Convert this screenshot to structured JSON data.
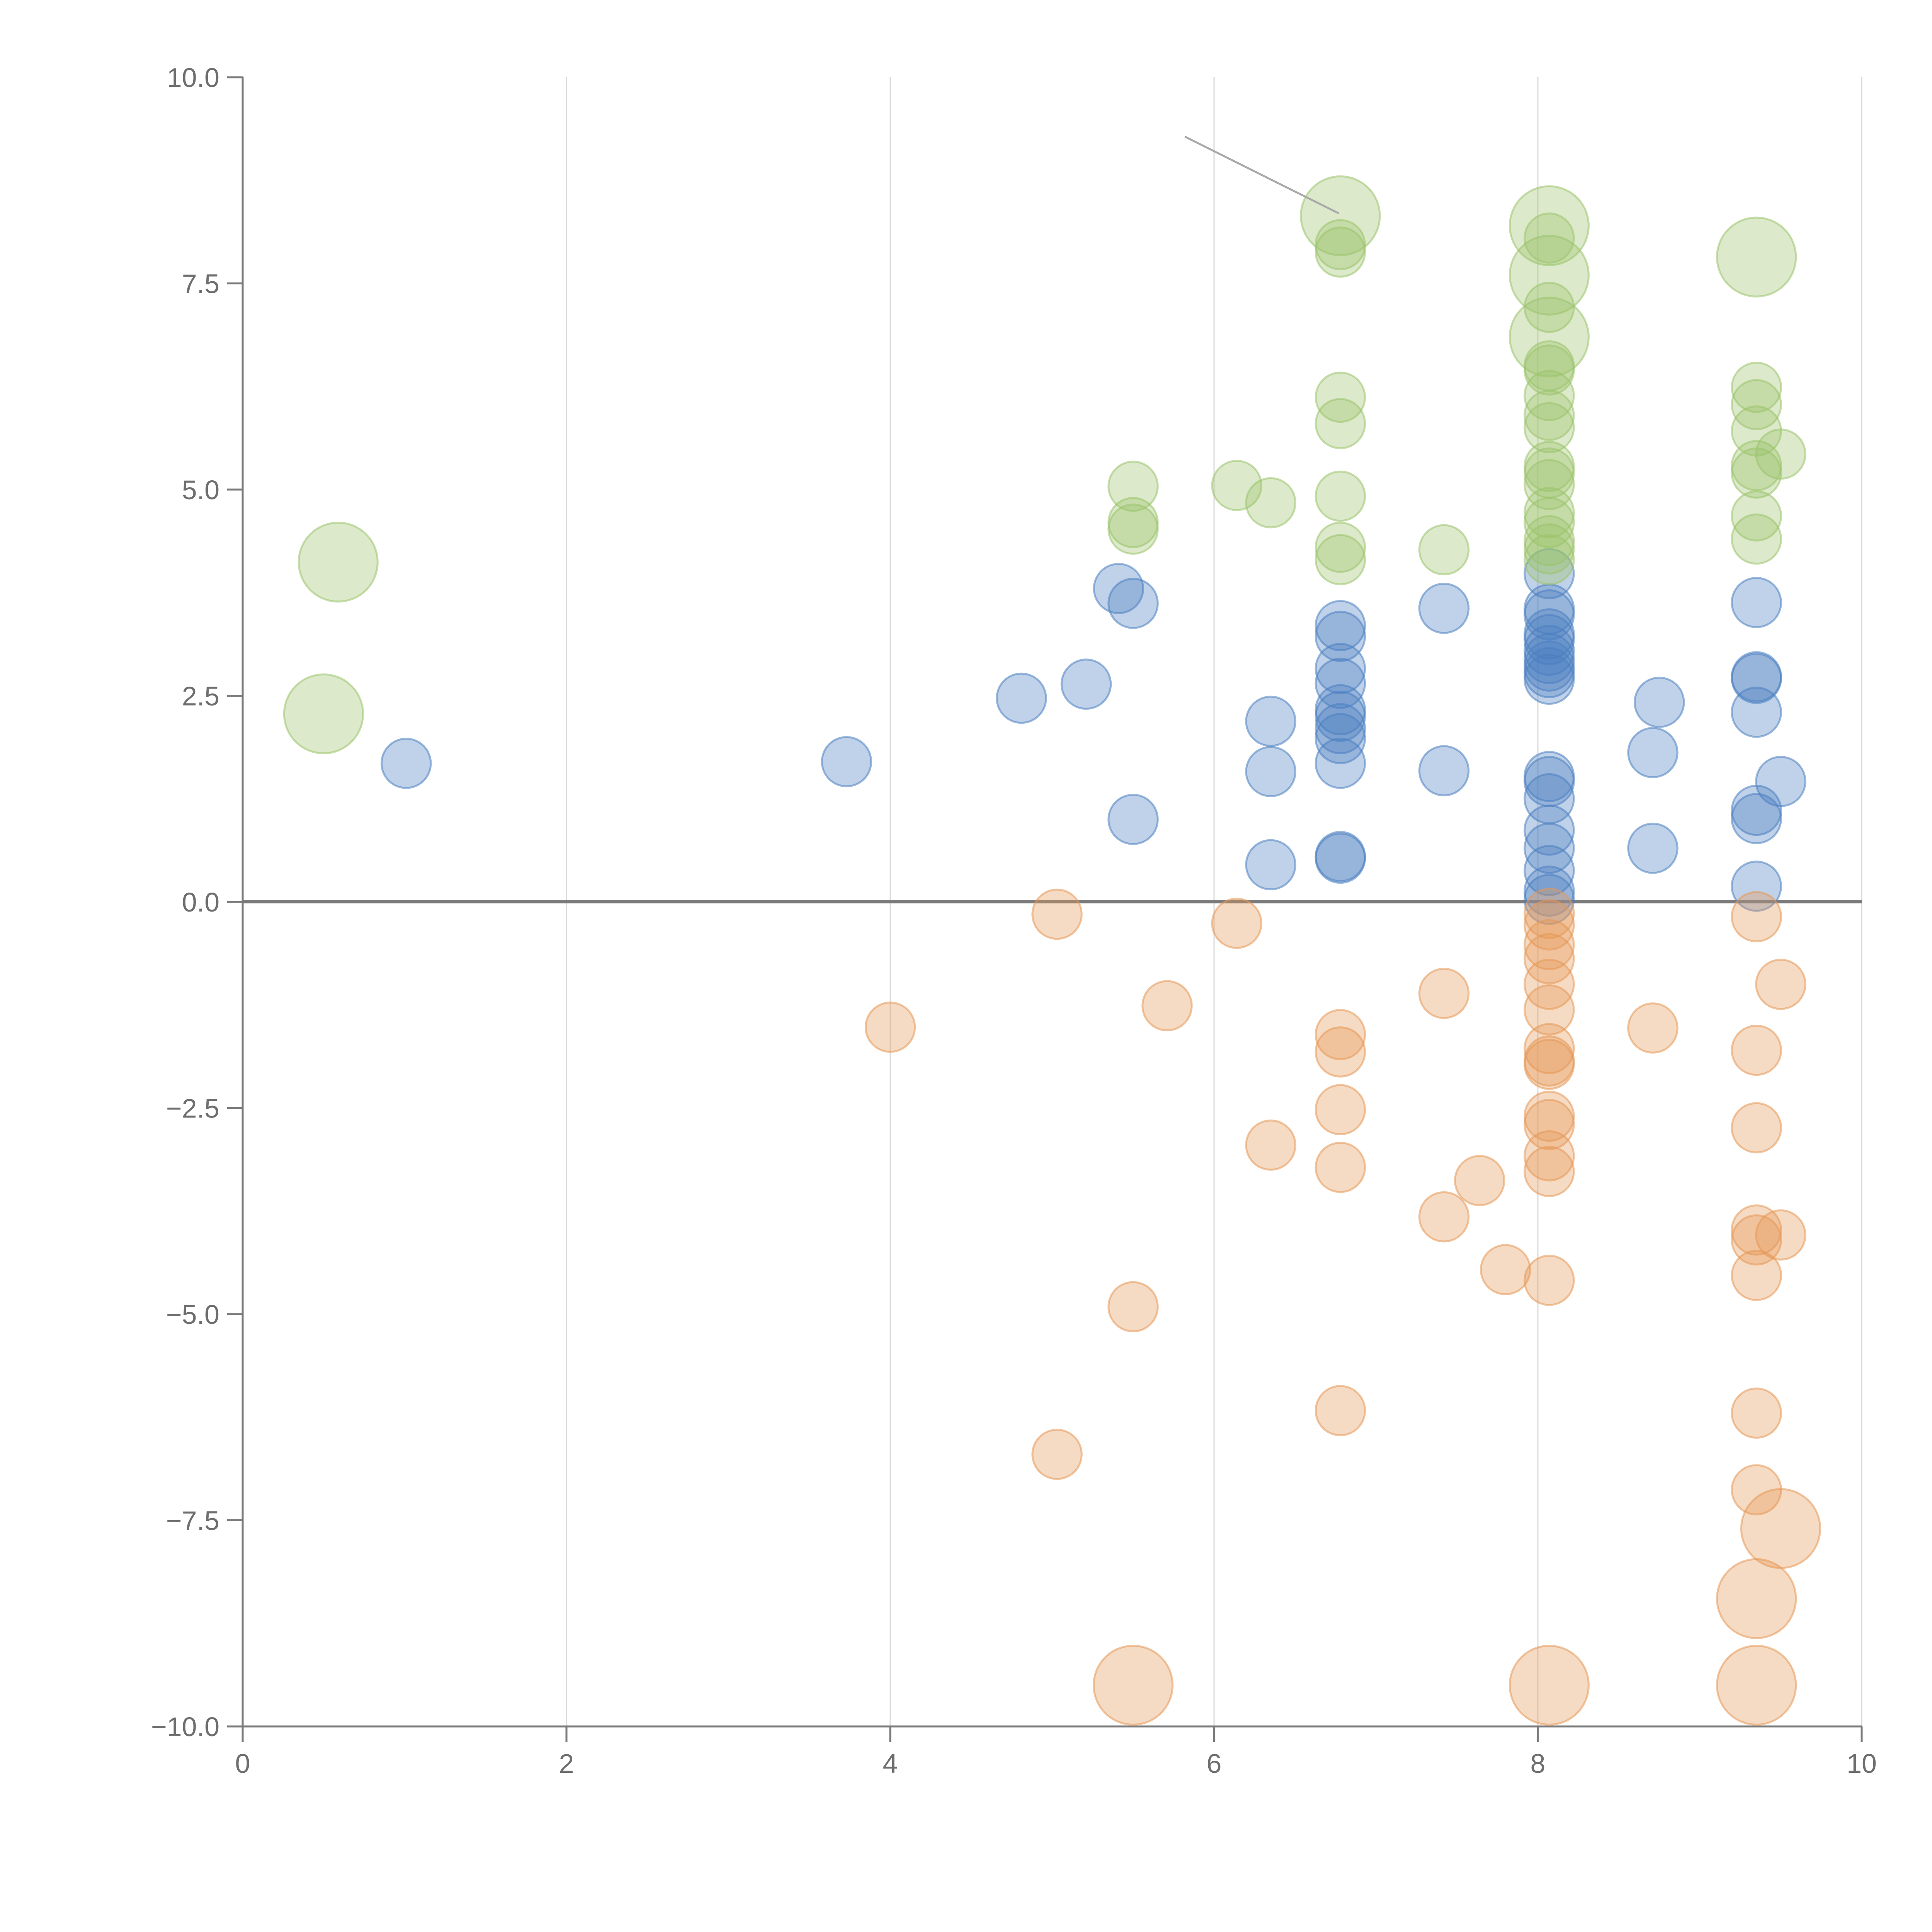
{
  "chart_data": {
    "type": "scatter",
    "subtype": "bubble",
    "title": "",
    "xlabel": "",
    "ylabel": "",
    "xlim": [
      0,
      10
    ],
    "ylim": [
      -10,
      10
    ],
    "x_ticks": [
      "0",
      "2",
      "4",
      "6",
      "8",
      "10"
    ],
    "y_ticks": [
      "10.0",
      "7.5",
      "5.0",
      "2.5",
      "0.0",
      "−2.5",
      "−5.0",
      "−7.5",
      "−10.0"
    ],
    "x_tick_values": [
      0,
      2,
      4,
      6,
      8,
      10
    ],
    "y_tick_values": [
      10,
      7.5,
      5,
      2.5,
      0,
      -2.5,
      -5,
      -7.5,
      -10
    ],
    "vertical_grid": true,
    "horizontal_grid": false,
    "zero_line": true,
    "size_scale_note": "r = relative bubble size (1 = smallest bubble)",
    "colors": {
      "blue": "#4a7fc1",
      "orange": "#e69855",
      "green": "#9bc36b"
    },
    "series": [
      {
        "name": "blue",
        "color": "#4a7fc1",
        "points": [
          {
            "x": 1.01,
            "y": 1.68,
            "r": 1
          },
          {
            "x": 3.73,
            "y": 1.7,
            "r": 1
          },
          {
            "x": 4.81,
            "y": 2.47,
            "r": 1
          },
          {
            "x": 5.21,
            "y": 2.64,
            "r": 1
          },
          {
            "x": 5.41,
            "y": 3.8,
            "r": 1
          },
          {
            "x": 5.5,
            "y": 3.62,
            "r": 1
          },
          {
            "x": 5.5,
            "y": 1.0,
            "r": 1
          },
          {
            "x": 6.35,
            "y": 2.19,
            "r": 1
          },
          {
            "x": 6.35,
            "y": 1.58,
            "r": 1
          },
          {
            "x": 6.35,
            "y": 0.45,
            "r": 1
          },
          {
            "x": 6.78,
            "y": 3.35,
            "r": 1
          },
          {
            "x": 6.78,
            "y": 3.22,
            "r": 1
          },
          {
            "x": 6.78,
            "y": 2.83,
            "r": 1
          },
          {
            "x": 6.78,
            "y": 2.65,
            "r": 1
          },
          {
            "x": 6.78,
            "y": 2.33,
            "r": 1
          },
          {
            "x": 6.78,
            "y": 2.25,
            "r": 1
          },
          {
            "x": 6.78,
            "y": 2.1,
            "r": 1
          },
          {
            "x": 6.78,
            "y": 1.98,
            "r": 1
          },
          {
            "x": 6.78,
            "y": 1.68,
            "r": 1
          },
          {
            "x": 6.78,
            "y": 0.55,
            "r": 1
          },
          {
            "x": 6.78,
            "y": 0.53,
            "r": 1
          },
          {
            "x": 7.42,
            "y": 3.56,
            "r": 1
          },
          {
            "x": 7.42,
            "y": 1.59,
            "r": 1
          },
          {
            "x": 8.07,
            "y": 3.98,
            "r": 1
          },
          {
            "x": 8.07,
            "y": 3.55,
            "r": 1
          },
          {
            "x": 8.07,
            "y": 3.48,
            "r": 1
          },
          {
            "x": 8.07,
            "y": 3.25,
            "r": 1
          },
          {
            "x": 8.07,
            "y": 3.18,
            "r": 1
          },
          {
            "x": 8.07,
            "y": 3.05,
            "r": 1
          },
          {
            "x": 8.07,
            "y": 2.95,
            "r": 1
          },
          {
            "x": 8.07,
            "y": 2.86,
            "r": 1
          },
          {
            "x": 8.07,
            "y": 2.78,
            "r": 1
          },
          {
            "x": 8.07,
            "y": 2.7,
            "r": 1
          },
          {
            "x": 8.07,
            "y": 1.52,
            "r": 1
          },
          {
            "x": 8.07,
            "y": 1.46,
            "r": 1
          },
          {
            "x": 8.07,
            "y": 1.25,
            "r": 1
          },
          {
            "x": 8.07,
            "y": 0.87,
            "r": 1
          },
          {
            "x": 8.07,
            "y": 0.65,
            "r": 1
          },
          {
            "x": 8.07,
            "y": 0.38,
            "r": 1
          },
          {
            "x": 8.07,
            "y": 0.13,
            "r": 1
          },
          {
            "x": 8.07,
            "y": 0.03,
            "r": 1
          },
          {
            "x": 8.71,
            "y": 1.81,
            "r": 1
          },
          {
            "x": 8.71,
            "y": 0.65,
            "r": 1
          },
          {
            "x": 8.75,
            "y": 2.42,
            "r": 1
          },
          {
            "x": 9.35,
            "y": 3.63,
            "r": 1
          },
          {
            "x": 9.35,
            "y": 2.73,
            "r": 1
          },
          {
            "x": 9.35,
            "y": 2.71,
            "r": 1
          },
          {
            "x": 9.35,
            "y": 2.3,
            "r": 1
          },
          {
            "x": 9.35,
            "y": 1.11,
            "r": 1
          },
          {
            "x": 9.35,
            "y": 1.01,
            "r": 1
          },
          {
            "x": 9.35,
            "y": 0.19,
            "r": 1
          },
          {
            "x": 9.5,
            "y": 1.46,
            "r": 1
          }
        ]
      },
      {
        "name": "orange",
        "color": "#e69855",
        "points": [
          {
            "x": 4.0,
            "y": -1.52,
            "r": 1
          },
          {
            "x": 5.03,
            "y": -0.15,
            "r": 1
          },
          {
            "x": 5.03,
            "y": -6.7,
            "r": 1
          },
          {
            "x": 5.5,
            "y": -4.91,
            "r": 1
          },
          {
            "x": 5.5,
            "y": -9.5,
            "r": 2
          },
          {
            "x": 5.71,
            "y": -1.26,
            "r": 1
          },
          {
            "x": 6.14,
            "y": -0.26,
            "r": 1
          },
          {
            "x": 6.35,
            "y": -2.95,
            "r": 1
          },
          {
            "x": 6.78,
            "y": -1.61,
            "r": 1
          },
          {
            "x": 6.78,
            "y": -1.82,
            "r": 1
          },
          {
            "x": 6.78,
            "y": -2.52,
            "r": 1
          },
          {
            "x": 6.78,
            "y": -3.22,
            "r": 1
          },
          {
            "x": 6.78,
            "y": -6.17,
            "r": 1
          },
          {
            "x": 7.42,
            "y": -1.11,
            "r": 1
          },
          {
            "x": 7.42,
            "y": -3.82,
            "r": 1
          },
          {
            "x": 7.64,
            "y": -3.38,
            "r": 1
          },
          {
            "x": 7.8,
            "y": -4.46,
            "r": 1
          },
          {
            "x": 8.07,
            "y": -0.14,
            "r": 1
          },
          {
            "x": 8.07,
            "y": -0.28,
            "r": 1
          },
          {
            "x": 8.07,
            "y": -0.52,
            "r": 1
          },
          {
            "x": 8.07,
            "y": -0.69,
            "r": 1
          },
          {
            "x": 8.07,
            "y": -1.0,
            "r": 1
          },
          {
            "x": 8.07,
            "y": -1.31,
            "r": 1
          },
          {
            "x": 8.07,
            "y": -1.78,
            "r": 1
          },
          {
            "x": 8.07,
            "y": -1.93,
            "r": 1
          },
          {
            "x": 8.07,
            "y": -1.97,
            "r": 1
          },
          {
            "x": 8.07,
            "y": -2.6,
            "r": 1
          },
          {
            "x": 8.07,
            "y": -2.7,
            "r": 1
          },
          {
            "x": 8.07,
            "y": -3.08,
            "r": 1
          },
          {
            "x": 8.07,
            "y": -3.27,
            "r": 1
          },
          {
            "x": 8.07,
            "y": -4.59,
            "r": 1
          },
          {
            "x": 8.07,
            "y": -9.5,
            "r": 2
          },
          {
            "x": 8.71,
            "y": -1.53,
            "r": 1
          },
          {
            "x": 9.35,
            "y": -0.18,
            "r": 1
          },
          {
            "x": 9.35,
            "y": -1.8,
            "r": 1
          },
          {
            "x": 9.35,
            "y": -2.74,
            "r": 1
          },
          {
            "x": 9.35,
            "y": -3.98,
            "r": 1
          },
          {
            "x": 9.35,
            "y": -4.1,
            "r": 1
          },
          {
            "x": 9.35,
            "y": -4.53,
            "r": 1
          },
          {
            "x": 9.35,
            "y": -6.2,
            "r": 1
          },
          {
            "x": 9.35,
            "y": -7.13,
            "r": 1
          },
          {
            "x": 9.35,
            "y": -8.45,
            "r": 2
          },
          {
            "x": 9.35,
            "y": -9.5,
            "r": 2
          },
          {
            "x": 9.5,
            "y": -1.0,
            "r": 1
          },
          {
            "x": 9.5,
            "y": -4.04,
            "r": 1
          },
          {
            "x": 9.5,
            "y": -7.6,
            "r": 2
          }
        ]
      },
      {
        "name": "green",
        "color": "#9bc36b",
        "points": [
          {
            "x": 0.5,
            "y": 2.28,
            "r": 2
          },
          {
            "x": 0.59,
            "y": 4.12,
            "r": 2
          },
          {
            "x": 5.5,
            "y": 5.04,
            "r": 1
          },
          {
            "x": 5.5,
            "y": 4.6,
            "r": 1
          },
          {
            "x": 5.5,
            "y": 4.52,
            "r": 1
          },
          {
            "x": 6.14,
            "y": 5.05,
            "r": 1
          },
          {
            "x": 6.35,
            "y": 4.84,
            "r": 1
          },
          {
            "x": 6.78,
            "y": 8.32,
            "r": 2
          },
          {
            "x": 6.78,
            "y": 7.97,
            "r": 1
          },
          {
            "x": 6.78,
            "y": 7.88,
            "r": 1
          },
          {
            "x": 6.78,
            "y": 6.12,
            "r": 1
          },
          {
            "x": 6.78,
            "y": 5.8,
            "r": 1
          },
          {
            "x": 6.78,
            "y": 4.92,
            "r": 1
          },
          {
            "x": 6.78,
            "y": 4.3,
            "r": 1
          },
          {
            "x": 6.78,
            "y": 4.15,
            "r": 1
          },
          {
            "x": 7.42,
            "y": 4.27,
            "r": 1
          },
          {
            "x": 8.07,
            "y": 8.2,
            "r": 2
          },
          {
            "x": 8.07,
            "y": 8.05,
            "r": 1
          },
          {
            "x": 8.07,
            "y": 7.6,
            "r": 2
          },
          {
            "x": 8.07,
            "y": 7.21,
            "r": 1
          },
          {
            "x": 8.07,
            "y": 6.85,
            "r": 2
          },
          {
            "x": 8.07,
            "y": 6.5,
            "r": 1
          },
          {
            "x": 8.07,
            "y": 6.45,
            "r": 1
          },
          {
            "x": 8.07,
            "y": 6.14,
            "r": 1
          },
          {
            "x": 8.07,
            "y": 5.9,
            "r": 1
          },
          {
            "x": 8.07,
            "y": 5.75,
            "r": 1
          },
          {
            "x": 8.07,
            "y": 5.28,
            "r": 1
          },
          {
            "x": 8.07,
            "y": 5.2,
            "r": 1
          },
          {
            "x": 8.07,
            "y": 5.06,
            "r": 1
          },
          {
            "x": 8.07,
            "y": 4.72,
            "r": 1
          },
          {
            "x": 8.07,
            "y": 4.6,
            "r": 1
          },
          {
            "x": 8.07,
            "y": 4.38,
            "r": 1
          },
          {
            "x": 8.07,
            "y": 4.28,
            "r": 1
          },
          {
            "x": 8.07,
            "y": 4.15,
            "r": 1
          },
          {
            "x": 9.35,
            "y": 7.82,
            "r": 2
          },
          {
            "x": 9.35,
            "y": 6.24,
            "r": 1
          },
          {
            "x": 9.35,
            "y": 6.03,
            "r": 1
          },
          {
            "x": 9.35,
            "y": 5.71,
            "r": 1
          },
          {
            "x": 9.35,
            "y": 5.29,
            "r": 1
          },
          {
            "x": 9.35,
            "y": 5.2,
            "r": 1
          },
          {
            "x": 9.35,
            "y": 4.68,
            "r": 1
          },
          {
            "x": 9.35,
            "y": 4.4,
            "r": 1
          },
          {
            "x": 9.5,
            "y": 5.43,
            "r": 1
          }
        ]
      }
    ],
    "annotations": [
      {
        "type": "leader-line",
        "from": {
          "x": 5.82,
          "y": 9.28
        },
        "to": {
          "x": 6.77,
          "y": 8.35
        }
      }
    ]
  }
}
